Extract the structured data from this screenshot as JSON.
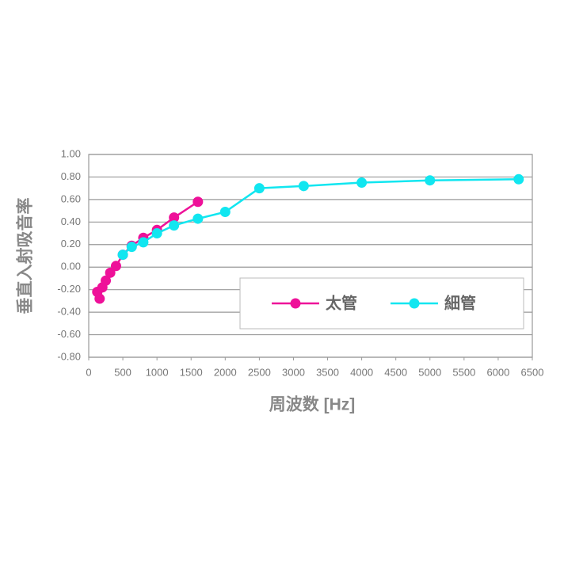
{
  "chart_data": {
    "type": "line",
    "x_label": "周波数 [Hz]",
    "y_label": "垂直入射吸音率",
    "xlim": [
      0,
      6500
    ],
    "xticks": [
      0,
      500,
      1000,
      1500,
      2000,
      2500,
      3000,
      3500,
      4000,
      4500,
      5000,
      5500,
      6000,
      6500
    ],
    "ylim": [
      -0.8,
      1.0
    ],
    "yticks": [
      {
        "value": 1.0,
        "label": "1.00"
      },
      {
        "value": 0.8,
        "label": "0.80"
      },
      {
        "value": 0.6,
        "label": "0.60"
      },
      {
        "value": 0.4,
        "label": "0.40"
      },
      {
        "value": 0.2,
        "label": "0.20"
      },
      {
        "value": 0.0,
        "label": "0.00"
      },
      {
        "value": -0.2,
        "label": "-0.20"
      },
      {
        "value": -0.4,
        "label": "-0.40"
      },
      {
        "value": -0.6,
        "label": "-0.60"
      },
      {
        "value": -0.8,
        "label": "-0.80"
      }
    ],
    "grid": true,
    "legend_position": "lower right",
    "series": [
      {
        "name": "太管",
        "color": "#ee1199",
        "x": [
          125,
          160,
          200,
          250,
          315,
          400,
          500,
          630,
          800,
          1000,
          1250,
          1600
        ],
        "values": [
          -0.22,
          -0.28,
          -0.18,
          -0.12,
          -0.05,
          0.01,
          0.11,
          0.19,
          0.26,
          0.33,
          0.44,
          0.58
        ]
      },
      {
        "name": "細管",
        "color": "#11e6f0",
        "x": [
          500,
          630,
          800,
          1000,
          1250,
          1600,
          2000,
          2500,
          3150,
          4000,
          5000,
          6300
        ],
        "values": [
          0.11,
          0.18,
          0.22,
          0.3,
          0.37,
          0.43,
          0.49,
          0.7,
          0.72,
          0.75,
          0.77,
          0.78
        ]
      }
    ]
  }
}
